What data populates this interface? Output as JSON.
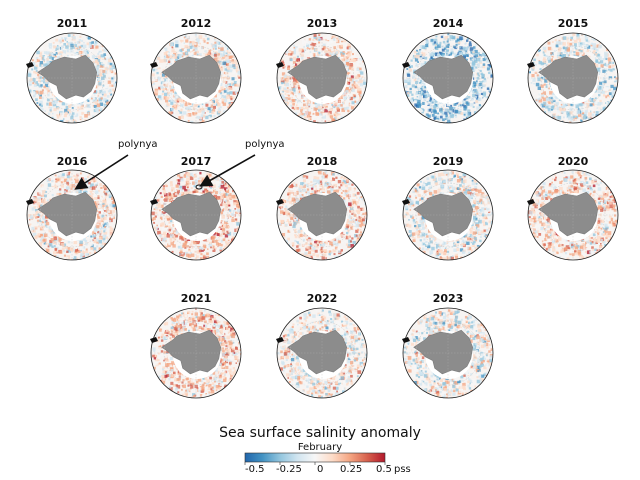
{
  "title": "Sea surface salinity anomaly",
  "subtitle": "February",
  "unit": "pss",
  "colorbar": {
    "ticks": [
      "-0.5",
      "-0.25",
      "0",
      "0.25",
      "0.5"
    ],
    "min": -0.5,
    "max": 0.5,
    "colors": [
      "#2166ac",
      "#4393c3",
      "#92c5de",
      "#d1e5f0",
      "#f7f7f7",
      "#fddbc7",
      "#f4a582",
      "#d6604d",
      "#b2182b"
    ]
  },
  "panels": [
    {
      "year": "2011",
      "bias": -0.05
    },
    {
      "year": "2012",
      "bias": 0.02
    },
    {
      "year": "2013",
      "bias": 0.08
    },
    {
      "year": "2014",
      "bias": -0.2
    },
    {
      "year": "2015",
      "bias": -0.05
    },
    {
      "year": "2016",
      "bias": 0.05
    },
    {
      "year": "2017",
      "bias": 0.15
    },
    {
      "year": "2018",
      "bias": 0.08
    },
    {
      "year": "2019",
      "bias": 0.0
    },
    {
      "year": "2020",
      "bias": 0.1
    },
    {
      "year": "2021",
      "bias": 0.12
    },
    {
      "year": "2022",
      "bias": 0.02
    },
    {
      "year": "2023",
      "bias": -0.02
    }
  ],
  "annotations": [
    {
      "text": "polynya",
      "panel": "2016"
    },
    {
      "text": "polynya",
      "panel": "2017"
    }
  ]
}
